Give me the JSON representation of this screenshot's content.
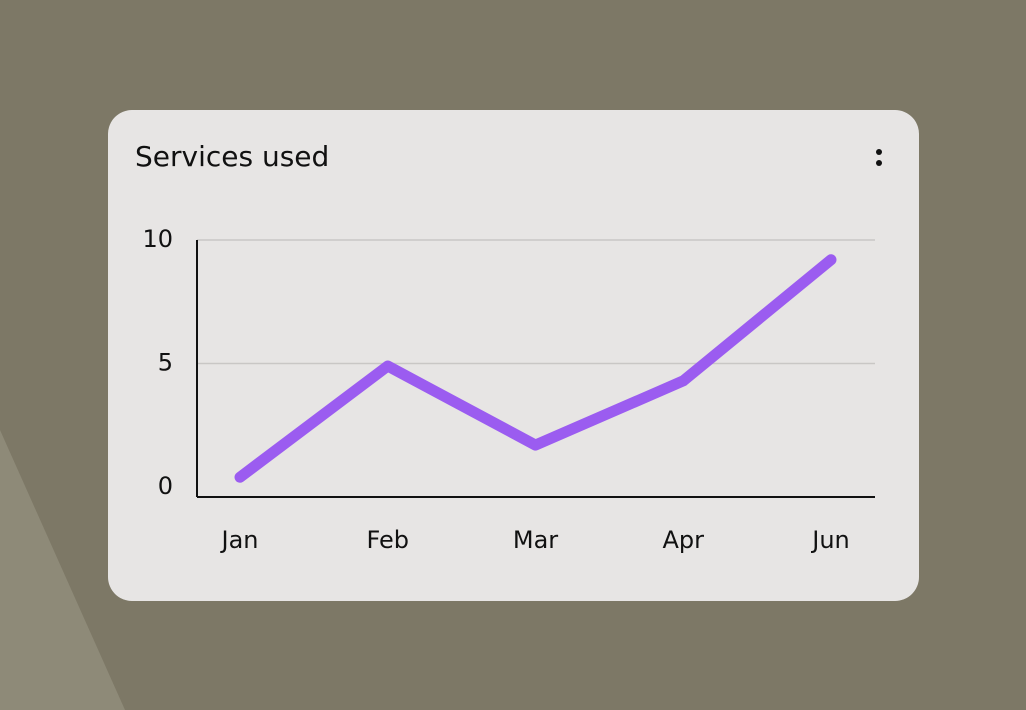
{
  "chart_data": {
    "type": "line",
    "title": "Services used",
    "categories": [
      "Jan",
      "Feb",
      "Mar",
      "Apr",
      "Jun"
    ],
    "values": [
      0.4,
      4.9,
      1.7,
      4.3,
      9.2
    ],
    "color": "#9b5cf0",
    "ylim": [
      -0.4,
      10
    ],
    "yticks": [
      0,
      5,
      10
    ],
    "grid": true
  }
}
